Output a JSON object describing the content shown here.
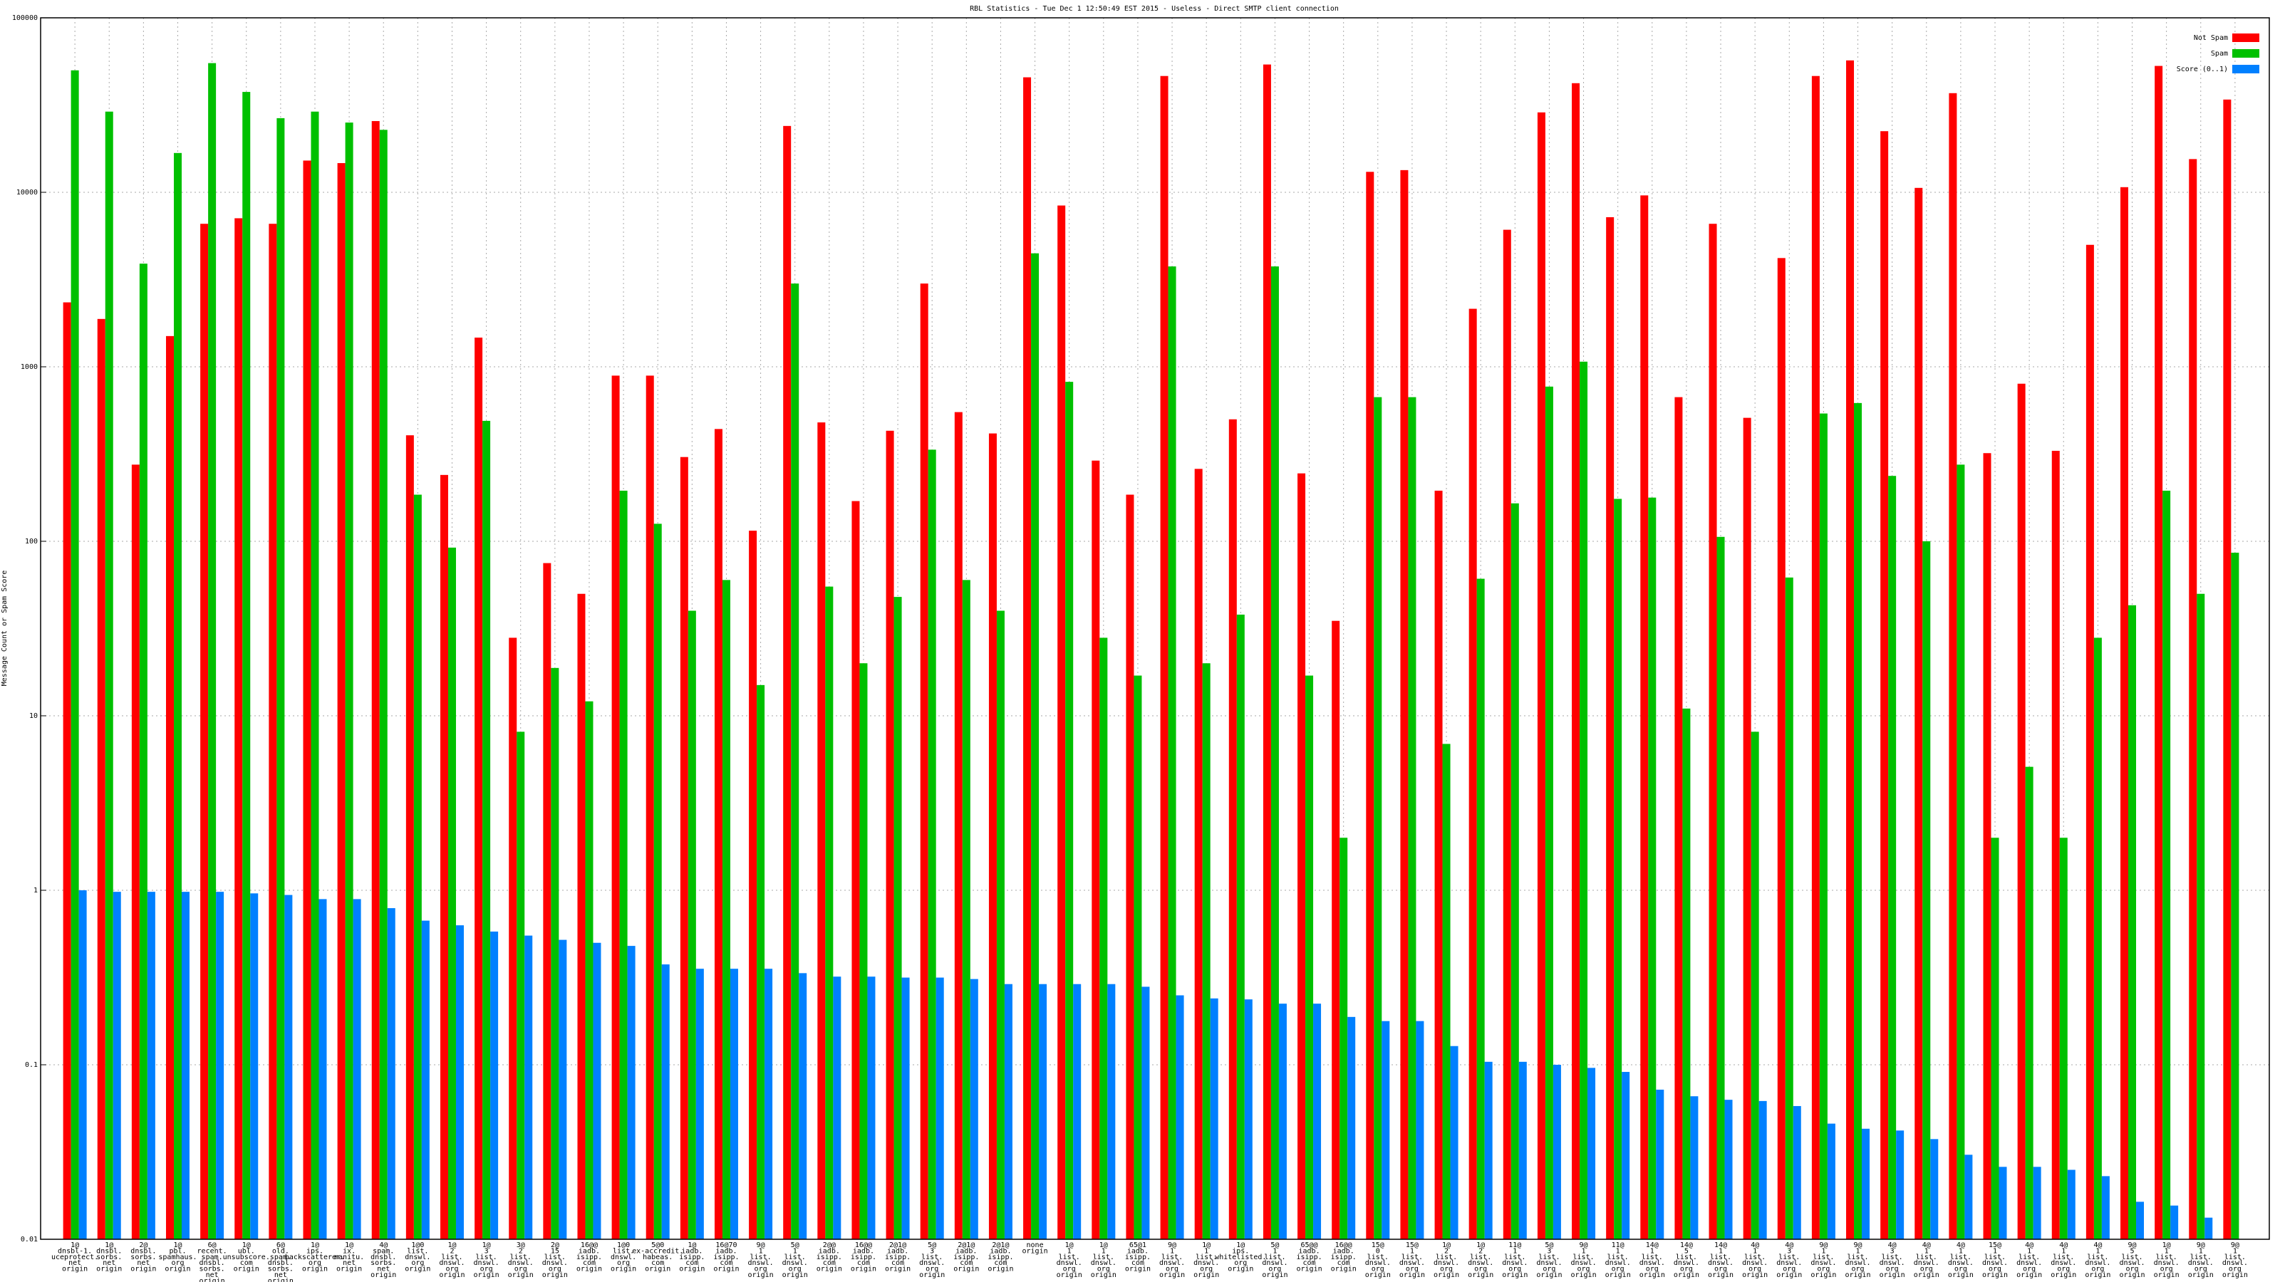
{
  "chart_data": {
    "type": "bar",
    "title": "RBL Statistics - Tue Dec  1 12:50:49 EST 2015 - Useless - Direct SMTP client connection",
    "y_label": "Message Count or Spam Score",
    "log_scale": true,
    "grid": true,
    "legend": "upper right",
    "ylim": [
      0.01,
      100000
    ],
    "yticks": [
      0.01,
      0.1,
      1,
      10,
      100,
      1000,
      10000,
      100000
    ],
    "categories": [
      [
        "1@",
        "dnsbl-1.",
        "uceprotect.",
        "net",
        "origin"
      ],
      [
        "1@",
        "dnsbl.",
        "sorbs.",
        "net",
        "origin"
      ],
      [
        "2@",
        "dnsbl.",
        "sorbs.",
        "net",
        "origin"
      ],
      [
        "1@",
        "pbl.",
        "spamhaus.",
        "org",
        "origin"
      ],
      [
        "6@",
        "recent.",
        "spam.",
        "dnsbl.",
        "sorbs.",
        "net",
        "origin"
      ],
      [
        "1@",
        "ubl.",
        "unsubscore.",
        "com",
        "origin"
      ],
      [
        "6@",
        "old.",
        "spam.",
        "dnsbl.",
        "sorbs.",
        "net",
        "origin"
      ],
      [
        "1@",
        "ips.",
        "backscatterer.",
        "org",
        "origin"
      ],
      [
        "1@",
        "ix.",
        "manitu.",
        "net",
        "origin"
      ],
      [
        "4@",
        "spam.",
        "dnsbl.",
        "sorbs.",
        "net",
        "origin"
      ],
      [
        "1@0",
        "list.",
        "dnswl.",
        "org",
        "origin"
      ],
      [
        "1@",
        "2",
        "list.",
        "dnswl.",
        "org",
        "origin"
      ],
      [
        "1@",
        "3",
        "list.",
        "dnswl.",
        "org",
        "origin"
      ],
      [
        "3@",
        "2",
        "list.",
        "dnswl.",
        "org",
        "origin"
      ],
      [
        "2@",
        "15",
        "list.",
        "dnswl.",
        "org",
        "origin"
      ],
      [
        "16@@",
        "iadb.",
        "isipp.",
        "com",
        "origin"
      ],
      [
        "1@0",
        "list.",
        "dnswl.",
        "org",
        "origin"
      ],
      [
        "5@0",
        "ex-accredit.",
        "habeas.",
        "com",
        "origin"
      ],
      [
        "1@",
        "iadb.",
        "isipp.",
        "com",
        "origin"
      ],
      [
        "16@70",
        "iadb.",
        "isipp.",
        "com",
        "origin"
      ],
      [
        "9@",
        "1",
        "list.",
        "dnswl.",
        "org",
        "origin"
      ],
      [
        "5@",
        "1",
        "list.",
        "dnswl.",
        "org",
        "origin"
      ],
      [
        "2@@",
        "iadb.",
        "isipp.",
        "com",
        "origin"
      ],
      [
        "16@@",
        "iadb.",
        "isipp.",
        "com",
        "origin"
      ],
      [
        "2@1@",
        "iadb.",
        "isipp.",
        "com",
        "origin"
      ],
      [
        "5@",
        "3",
        "list.",
        "dnswl.",
        "org",
        "origin"
      ],
      [
        "2@1@",
        "iadb.",
        "isipp.",
        "com",
        "origin"
      ],
      [
        "2@1@",
        "iadb.",
        "isipp.",
        "com",
        "origin"
      ],
      [
        "none",
        "origin"
      ],
      [
        "1@",
        "1",
        "list.",
        "dnswl.",
        "org",
        "origin"
      ],
      [
        "1@",
        "1",
        "list.",
        "dnswl.",
        "org",
        "origin"
      ],
      [
        "65@1",
        "iadb.",
        "isipp.",
        "com",
        "origin"
      ],
      [
        "9@",
        "1",
        "list.",
        "dnswl.",
        "org",
        "origin"
      ],
      [
        "1@",
        "1",
        "list.",
        "dnswl.",
        "org",
        "origin"
      ],
      [
        "1@",
        "ips.",
        "whitelisted.",
        "org",
        "origin"
      ],
      [
        "5@",
        "1",
        "list.",
        "dnswl.",
        "org",
        "origin"
      ],
      [
        "65@@",
        "iadb.",
        "isipp.",
        "com",
        "origin"
      ],
      [
        "16@@",
        "iadb.",
        "isipp.",
        "com",
        "origin"
      ],
      [
        "15@",
        "0",
        "list.",
        "dnswl.",
        "org",
        "origin"
      ],
      [
        "15@",
        "1",
        "list.",
        "dnswl.",
        "org",
        "origin"
      ],
      [
        "1@",
        "2",
        "list.",
        "dnswl.",
        "org",
        "origin"
      ],
      [
        "1@",
        "2",
        "list.",
        "dnswl.",
        "org",
        "origin"
      ],
      [
        "11@",
        "1",
        "list.",
        "dnswl.",
        "org",
        "origin"
      ],
      [
        "5@",
        "3",
        "list.",
        "dnswl.",
        "org",
        "origin"
      ],
      [
        "9@",
        "1",
        "list.",
        "dnswl.",
        "org",
        "origin"
      ],
      [
        "11@",
        "1",
        "list.",
        "dnswl.",
        "org",
        "origin"
      ],
      [
        "14@",
        "1",
        "list.",
        "dnswl.",
        "org",
        "origin"
      ],
      [
        "14@",
        "5",
        "list.",
        "dnswl.",
        "org",
        "origin"
      ],
      [
        "14@",
        "1",
        "list.",
        "dnswl.",
        "org",
        "origin"
      ],
      [
        "4@",
        "1",
        "list.",
        "dnswl.",
        "org",
        "origin"
      ],
      [
        "4@",
        "3",
        "list.",
        "dnswl.",
        "org",
        "origin"
      ],
      [
        "9@",
        "1",
        "list.",
        "dnswl.",
        "org",
        "origin"
      ],
      [
        "9@",
        "1",
        "list.",
        "dnswl.",
        "org",
        "origin"
      ],
      [
        "4@",
        "3",
        "list.",
        "dnswl.",
        "org",
        "origin"
      ],
      [
        "4@",
        "1",
        "list.",
        "dnswl.",
        "org",
        "origin"
      ],
      [
        "4@",
        "1",
        "list.",
        "dnswl.",
        "org",
        "origin"
      ],
      [
        "15@",
        "1",
        "list.",
        "dnswl.",
        "org",
        "origin"
      ],
      [
        "4@",
        "1",
        "list.",
        "dnswl.",
        "org",
        "origin"
      ],
      [
        "4@",
        "1",
        "list.",
        "dnswl.",
        "org",
        "origin"
      ],
      [
        "4@",
        "1",
        "list.",
        "dnswl.",
        "org",
        "origin"
      ],
      [
        "9@",
        "5",
        "list.",
        "dnswl.",
        "org",
        "origin"
      ],
      [
        "1@",
        "1",
        "list.",
        "dnswl.",
        "org",
        "origin"
      ],
      [
        "9@",
        "1",
        "list.",
        "dnswl.",
        "org",
        "origin"
      ],
      [
        "9@",
        "1",
        "list.",
        "dnswl.",
        "org",
        "origin"
      ]
    ],
    "series": [
      {
        "name": "Not Spam",
        "color": "#ff0000",
        "values": [
          2340,
          1880,
          275,
          1500,
          6600,
          7100,
          6600,
          15200,
          14700,
          25600,
          405,
          240,
          1470,
          28,
          75,
          50,
          890,
          890,
          304,
          440,
          115,
          24000,
          480,
          170,
          430,
          3000,
          550,
          415,
          45600,
          8400,
          290,
          185,
          46400,
          260,
          500,
          54000,
          245,
          35,
          13100,
          13400,
          195,
          2150,
          6100,
          28700,
          42200,
          7200,
          9600,
          670,
          6600,
          510,
          4200,
          46400,
          57000,
          22400,
          10600,
          37000,
          320,
          800,
          330,
          5000,
          10700,
          53000,
          15500,
          34000
        ]
      },
      {
        "name": "Spam",
        "color": "#00c000",
        "values": [
          50000,
          29000,
          3900,
          16800,
          55000,
          37600,
          26600,
          29000,
          25100,
          22800,
          185,
          92,
          490,
          8.1,
          18.8,
          12.1,
          195,
          126,
          40,
          60,
          15,
          3000,
          55,
          20,
          48,
          335,
          60,
          40,
          4470,
          820,
          28,
          17,
          3760,
          20,
          38,
          3760,
          17,
          2,
          670,
          670,
          6.9,
          61,
          165,
          770,
          1070,
          175,
          178,
          11,
          106,
          8.1,
          62,
          540,
          620,
          237,
          100,
          275,
          2,
          5.1,
          2,
          28,
          43,
          195,
          50,
          86
        ]
      },
      {
        "name": "Score (0..1)",
        "color": "#0080ff",
        "values": [
          1.0,
          0.98,
          0.98,
          0.98,
          0.98,
          0.96,
          0.94,
          0.89,
          0.89,
          0.79,
          0.67,
          0.63,
          0.58,
          0.55,
          0.52,
          0.5,
          0.48,
          0.376,
          0.355,
          0.355,
          0.355,
          0.335,
          0.32,
          0.32,
          0.316,
          0.316,
          0.31,
          0.29,
          0.29,
          0.29,
          0.29,
          0.28,
          0.25,
          0.24,
          0.237,
          0.224,
          0.224,
          0.188,
          0.178,
          0.178,
          0.128,
          0.104,
          0.104,
          0.1,
          0.096,
          0.091,
          0.072,
          0.066,
          0.063,
          0.062,
          0.058,
          0.046,
          0.043,
          0.042,
          0.0375,
          0.0305,
          0.026,
          0.026,
          0.025,
          0.023,
          0.0164,
          0.0156,
          0.0133,
          null
        ]
      }
    ]
  }
}
